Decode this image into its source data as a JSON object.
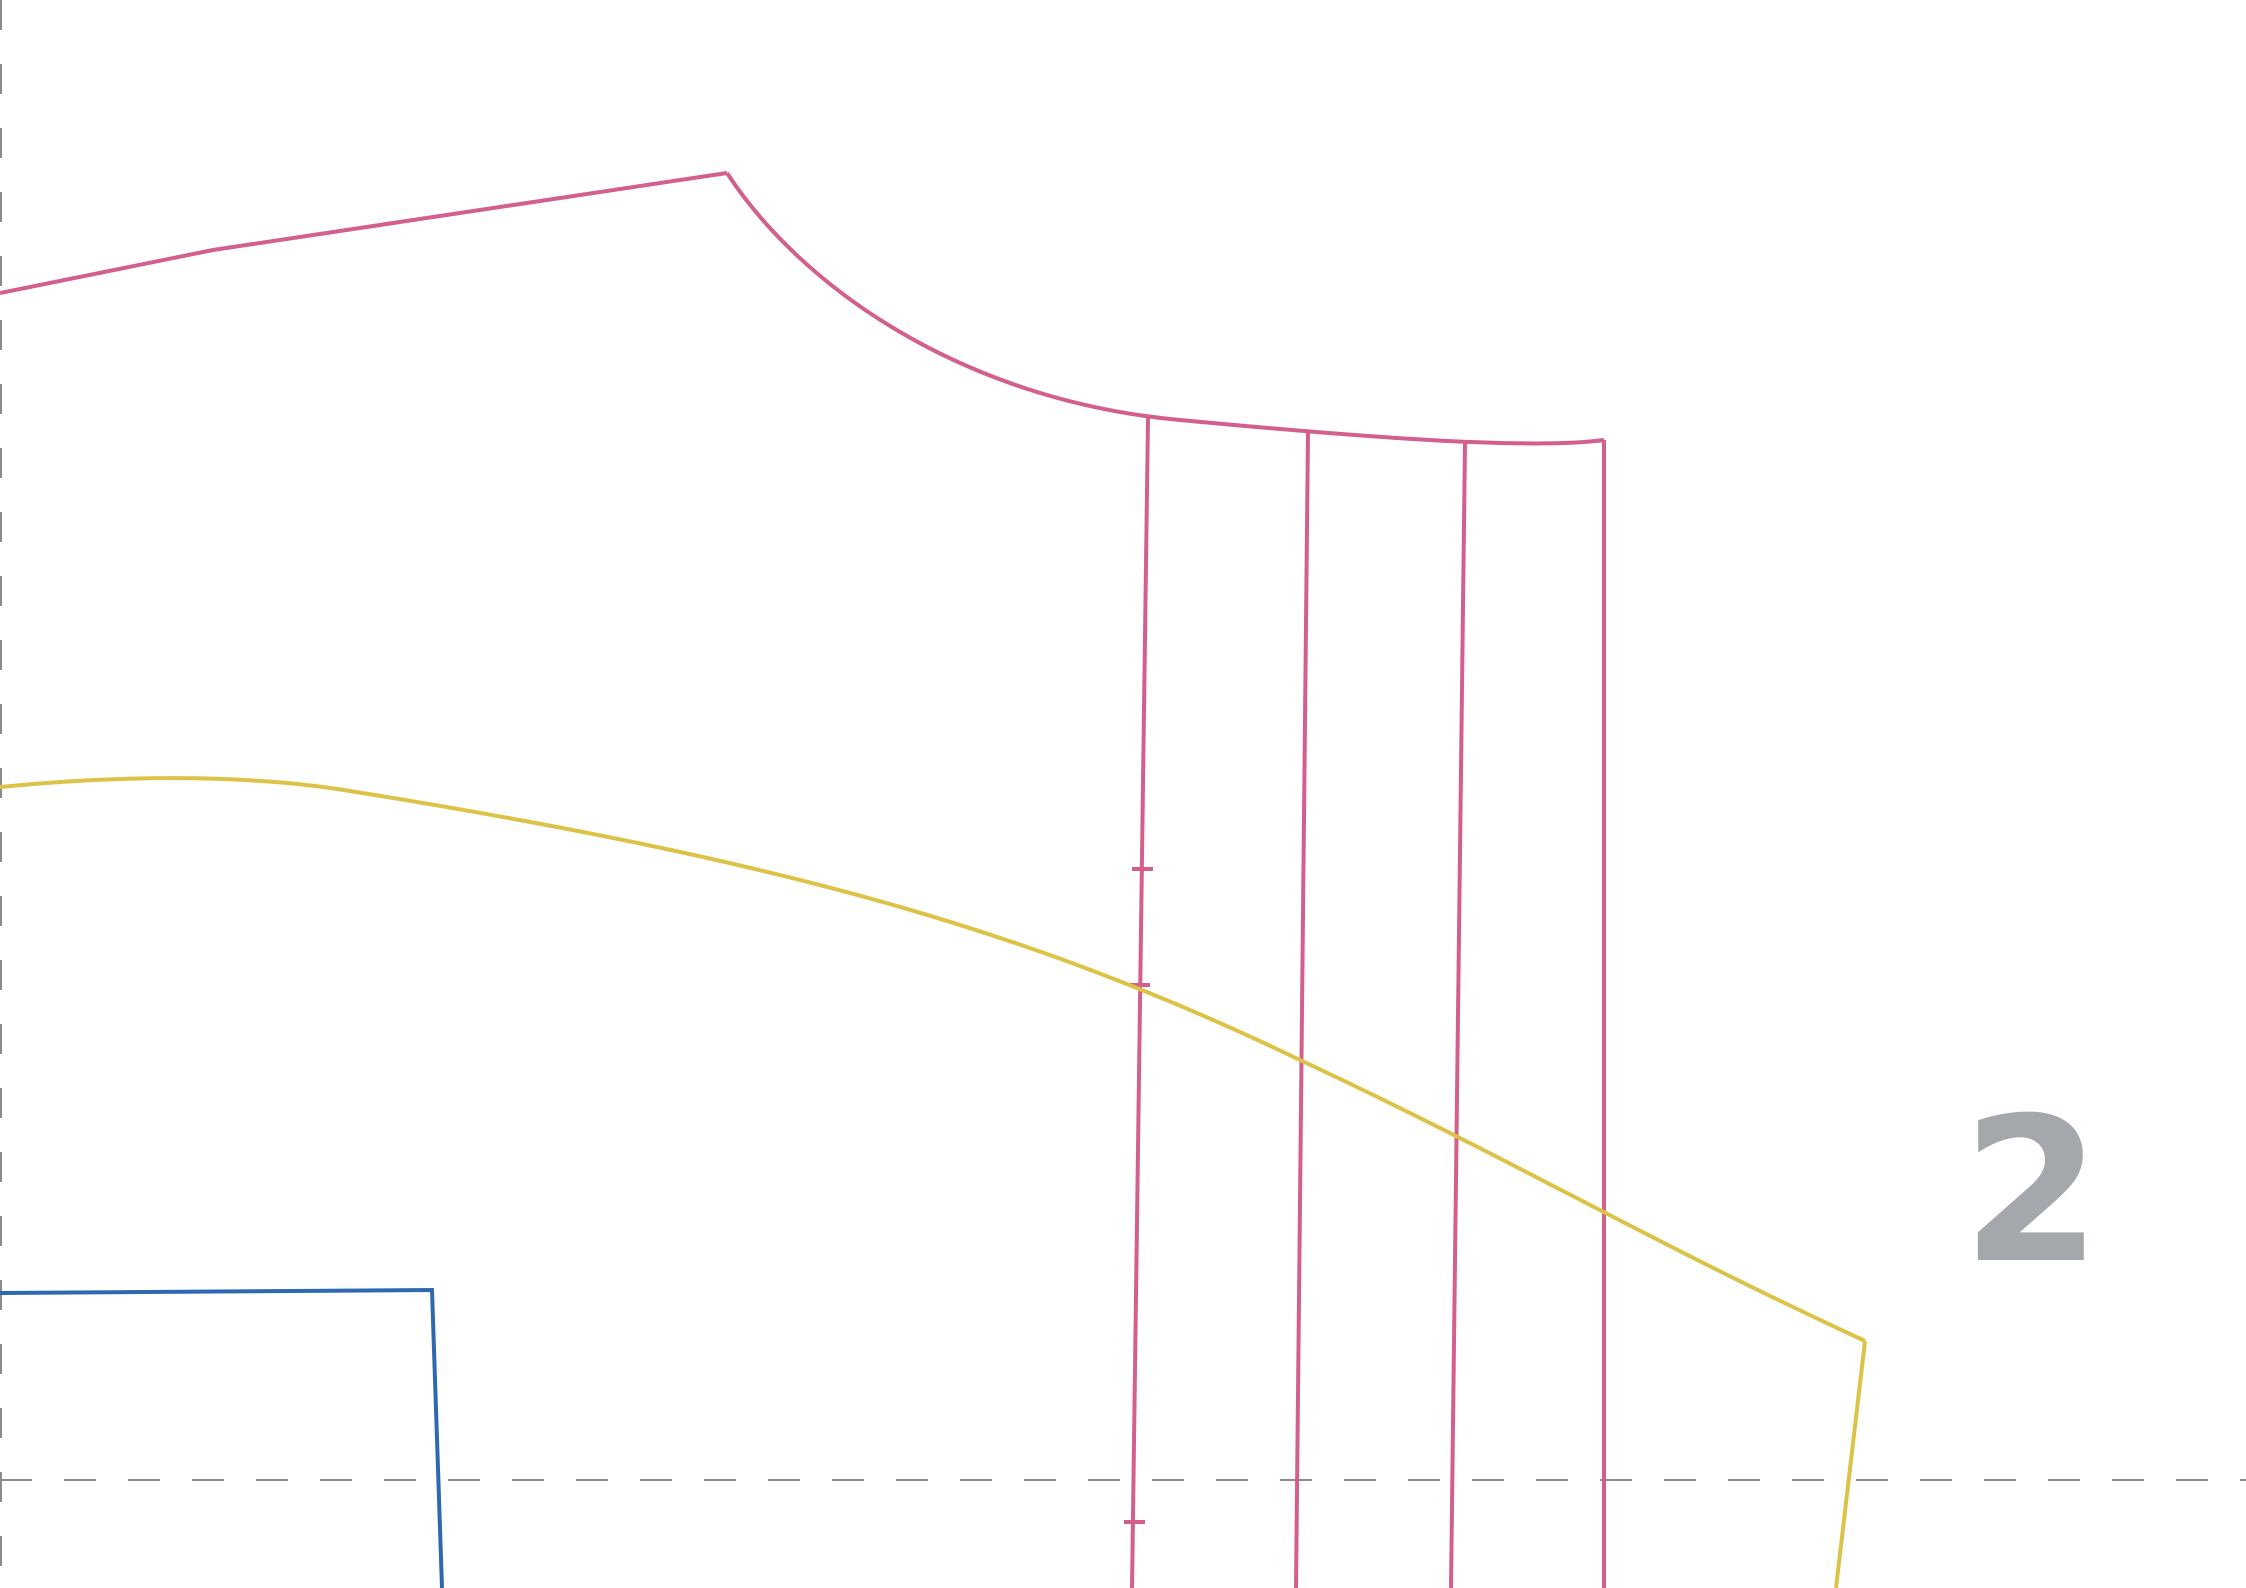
{
  "page": {
    "number_label": "2"
  },
  "pieces": [
    {
      "name": "pink-piece",
      "color": "#d35f8d"
    },
    {
      "name": "yellow-piece",
      "color": "#dcc347"
    },
    {
      "name": "blue-piece",
      "color": "#2f68b0"
    }
  ],
  "guides": {
    "color": "#8c8c8c"
  },
  "number_color": "#a4a7ab"
}
